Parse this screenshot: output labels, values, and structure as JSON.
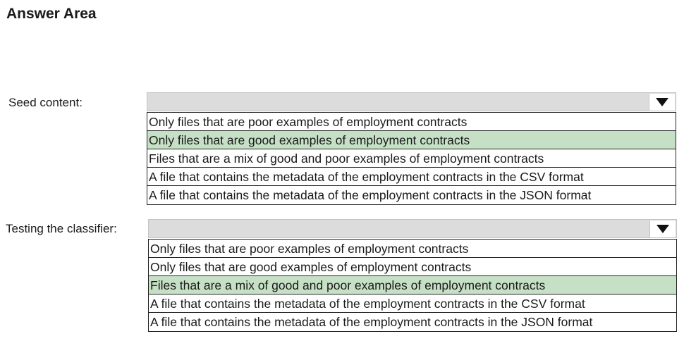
{
  "page": {
    "title": "Answer Area"
  },
  "seed": {
    "label": "Seed content:",
    "selected_index": 1,
    "options": [
      "Only files that are poor examples of employment contracts",
      "Only files that are good examples of employment contracts",
      "Files that are a mix of good and poor examples of employment contracts",
      "A file that contains the metadata of the employment contracts in the CSV format",
      "A file that contains the metadata of the employment contracts in the JSON format"
    ]
  },
  "testing": {
    "label": "Testing the classifier:",
    "selected_index": 2,
    "options": [
      "Only files that are poor examples of employment contracts",
      "Only files that are good examples of employment contracts",
      "Files that are a mix of good and poor examples of employment contracts",
      "A file that contains the metadata of the employment contracts in the CSV format",
      "A file that contains the metadata of the employment contracts in the JSON format"
    ]
  },
  "colors": {
    "selected_bg": "#c6e0c6",
    "dropdown_bg": "#dcdcdc"
  },
  "icons": {
    "dropdown": "triangle-down-icon"
  }
}
